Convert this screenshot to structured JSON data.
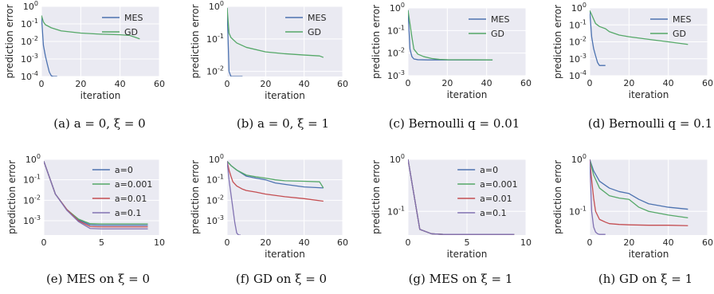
{
  "colors": {
    "plot_bg": "#eaeaf2",
    "grid": "#ffffff",
    "text": "#262626",
    "series": {
      "blue": "#4c72b0",
      "green": "#55a868",
      "red": "#c44e52",
      "purple": "#8172b2"
    }
  },
  "chart_data": [
    {
      "id": "a",
      "type": "line",
      "caption": {
        "label": "(a)",
        "text": "a = 0, ξ = 0"
      },
      "xlabel": "iteration",
      "ylabel": "prediction error",
      "xscale": "linear",
      "yscale": "log",
      "xlim": [
        0,
        60
      ],
      "ylim": [
        0.0001,
        1
      ],
      "xticks": [
        "0",
        "20",
        "40",
        "60"
      ],
      "yticks": [
        {
          "base": "10",
          "exp": "-4"
        },
        {
          "base": "10",
          "exp": "-3"
        },
        {
          "base": "10",
          "exp": "-2"
        },
        {
          "base": "10",
          "exp": "-1"
        },
        {
          "base": "10",
          "exp": "0"
        }
      ],
      "grid": true,
      "legend_position": "top-right",
      "series": [
        {
          "name": "MES",
          "color": "#4c72b0",
          "x": [
            0,
            1,
            2,
            3,
            4,
            5,
            6,
            8
          ],
          "y": [
            0.3,
            0.006,
            0.0015,
            0.0005,
            0.00018,
            0.00011,
            0.0001,
            0.0001
          ]
        },
        {
          "name": "GD",
          "color": "#55a868",
          "x": [
            0,
            1,
            2,
            5,
            10,
            20,
            30,
            40,
            45,
            50
          ],
          "y": [
            0.3,
            0.13,
            0.09,
            0.06,
            0.04,
            0.03,
            0.026,
            0.024,
            0.022,
            0.014
          ]
        }
      ]
    },
    {
      "id": "b",
      "type": "line",
      "caption": {
        "label": "(b)",
        "text": "a = 0, ξ = 1"
      },
      "xlabel": "iteration",
      "ylabel": "prediction error",
      "xscale": "linear",
      "yscale": "log",
      "xlim": [
        0,
        60
      ],
      "ylim": [
        0.007,
        1
      ],
      "xticks": [
        "0",
        "20",
        "40",
        "60"
      ],
      "yticks": [
        {
          "base": "10",
          "exp": "-2"
        },
        {
          "base": "10",
          "exp": "-1"
        },
        {
          "base": "10",
          "exp": "0"
        }
      ],
      "grid": true,
      "legend_position": "top-right",
      "series": [
        {
          "name": "MES",
          "color": "#4c72b0",
          "x": [
            0,
            1,
            2,
            3,
            8
          ],
          "y": [
            0.9,
            0.01,
            0.007,
            0.007,
            0.007
          ]
        },
        {
          "name": "GD",
          "color": "#55a868",
          "x": [
            0,
            1,
            2,
            5,
            10,
            20,
            30,
            40,
            48,
            50
          ],
          "y": [
            0.9,
            0.15,
            0.11,
            0.075,
            0.055,
            0.04,
            0.035,
            0.032,
            0.03,
            0.027
          ]
        }
      ]
    },
    {
      "id": "c",
      "type": "line",
      "caption": {
        "label": "(c)",
        "text": "Bernoulli q = 0.01"
      },
      "xlabel": "iteration",
      "ylabel": "prediction error",
      "xscale": "linear",
      "yscale": "log",
      "xlim": [
        0,
        60
      ],
      "ylim": [
        0.001,
        1
      ],
      "xticks": [
        "0",
        "20",
        "40",
        "60"
      ],
      "yticks": [
        {
          "base": "10",
          "exp": "-3"
        },
        {
          "base": "10",
          "exp": "-2"
        },
        {
          "base": "10",
          "exp": "-1"
        },
        {
          "base": "10",
          "exp": "0"
        }
      ],
      "grid": true,
      "legend_position": "top-right",
      "series": [
        {
          "name": "MES",
          "color": "#4c72b0",
          "x": [
            0,
            1,
            2,
            3,
            5,
            10,
            20,
            30,
            43
          ],
          "y": [
            0.8,
            0.015,
            0.007,
            0.0055,
            0.0051,
            0.005,
            0.005,
            0.005,
            0.005
          ]
        },
        {
          "name": "GD",
          "color": "#55a868",
          "x": [
            0,
            1,
            2,
            3,
            5,
            8,
            12,
            16,
            20,
            43
          ],
          "y": [
            0.8,
            0.2,
            0.05,
            0.015,
            0.009,
            0.007,
            0.0058,
            0.0053,
            0.0051,
            0.005
          ]
        }
      ]
    },
    {
      "id": "d",
      "type": "line",
      "caption": {
        "label": "(d)",
        "text": "Bernoulli q = 0.1"
      },
      "xlabel": "iteration",
      "ylabel": "prediction error",
      "xscale": "linear",
      "yscale": "log",
      "xlim": [
        0,
        60
      ],
      "ylim": [
        0.0001,
        1
      ],
      "xticks": [
        "0",
        "20",
        "40",
        "60"
      ],
      "yticks": [
        {
          "base": "10",
          "exp": "-4"
        },
        {
          "base": "10",
          "exp": "-3"
        },
        {
          "base": "10",
          "exp": "-2"
        },
        {
          "base": "10",
          "exp": "-1"
        },
        {
          "base": "10",
          "exp": "0"
        }
      ],
      "grid": true,
      "legend_position": "top-right",
      "series": [
        {
          "name": "MES",
          "color": "#4c72b0",
          "x": [
            0,
            1,
            2,
            3,
            4,
            5,
            8
          ],
          "y": [
            0.7,
            0.02,
            0.004,
            0.0015,
            0.0006,
            0.0004,
            0.0004
          ]
        },
        {
          "name": "GD",
          "color": "#55a868",
          "x": [
            0,
            1,
            2,
            3,
            5,
            8,
            10,
            15,
            20,
            30,
            40,
            50
          ],
          "y": [
            0.7,
            0.4,
            0.22,
            0.12,
            0.08,
            0.06,
            0.04,
            0.025,
            0.02,
            0.014,
            0.01,
            0.007
          ]
        }
      ]
    },
    {
      "id": "e",
      "type": "line",
      "caption": {
        "label": "(e)",
        "text": "MES on ξ = 0"
      },
      "xlabel": "",
      "ylabel": "prediction error",
      "xscale": "linear",
      "yscale": "log",
      "xlim": [
        0,
        10
      ],
      "ylim": [
        0.0002,
        1
      ],
      "xticks": [
        "0",
        "5",
        "10"
      ],
      "yticks": [
        {
          "base": "10",
          "exp": "-3"
        },
        {
          "base": "10",
          "exp": "-2"
        },
        {
          "base": "10",
          "exp": "-1"
        },
        {
          "base": "10",
          "exp": "0"
        }
      ],
      "grid": true,
      "legend_position": "upper-middle",
      "series": [
        {
          "name": "a=0",
          "color": "#4c72b0",
          "x": [
            0,
            1,
            2,
            3,
            4,
            5,
            6,
            7,
            8,
            9
          ],
          "y": [
            0.8,
            0.02,
            0.0035,
            0.0011,
            0.00062,
            0.0006,
            0.0006,
            0.0006,
            0.0006,
            0.0006
          ]
        },
        {
          "name": "a=0.001",
          "color": "#55a868",
          "x": [
            0,
            1,
            2,
            3,
            4,
            5,
            6,
            7,
            8,
            9
          ],
          "y": [
            0.8,
            0.02,
            0.0035,
            0.0012,
            0.00072,
            0.0007,
            0.0007,
            0.0007,
            0.0007,
            0.0007
          ]
        },
        {
          "name": "a=0.01",
          "color": "#c44e52",
          "x": [
            0,
            1,
            2,
            3,
            4,
            5,
            6,
            7,
            8,
            9
          ],
          "y": [
            0.8,
            0.02,
            0.0035,
            0.001,
            0.00052,
            0.0005,
            0.0005,
            0.0005,
            0.0005,
            0.0005
          ]
        },
        {
          "name": "a=0.1",
          "color": "#8172b2",
          "x": [
            0,
            1,
            2,
            3,
            4,
            5,
            6,
            7,
            8,
            9
          ],
          "y": [
            0.8,
            0.02,
            0.0032,
            0.0009,
            0.00042,
            0.0004,
            0.0004,
            0.0004,
            0.0004,
            0.0004
          ]
        }
      ]
    },
    {
      "id": "f",
      "type": "line",
      "caption": {
        "label": "(f)",
        "text": "GD on ξ = 0"
      },
      "xlabel": "iteration",
      "ylabel": "prediction error",
      "xscale": "linear",
      "yscale": "log",
      "xlim": [
        0,
        60
      ],
      "ylim": [
        0.0002,
        1
      ],
      "xticks": [
        "0",
        "20",
        "40",
        "60"
      ],
      "yticks": [
        {
          "base": "10",
          "exp": "-3"
        },
        {
          "base": "10",
          "exp": "-2"
        },
        {
          "base": "10",
          "exp": "-1"
        },
        {
          "base": "10",
          "exp": "0"
        }
      ],
      "grid": true,
      "legend_position": "none",
      "series": [
        {
          "name": "a=0",
          "color": "#4c72b0",
          "x": [
            0,
            2,
            5,
            10,
            15,
            20,
            25,
            30,
            40,
            50
          ],
          "y": [
            0.8,
            0.5,
            0.3,
            0.15,
            0.12,
            0.1,
            0.07,
            0.06,
            0.045,
            0.04
          ]
        },
        {
          "name": "a=0.001",
          "color": "#55a868",
          "x": [
            0,
            2,
            5,
            10,
            15,
            20,
            25,
            30,
            40,
            48,
            50
          ],
          "y": [
            0.8,
            0.5,
            0.3,
            0.17,
            0.14,
            0.12,
            0.1,
            0.09,
            0.085,
            0.08,
            0.04
          ]
        },
        {
          "name": "a=0.01",
          "color": "#c44e52",
          "x": [
            0,
            1,
            2,
            3,
            5,
            8,
            10,
            15,
            20,
            30,
            40,
            50
          ],
          "y": [
            0.8,
            0.3,
            0.15,
            0.08,
            0.05,
            0.035,
            0.03,
            0.025,
            0.02,
            0.015,
            0.012,
            0.009
          ]
        },
        {
          "name": "a=0.1",
          "color": "#8172b2",
          "x": [
            0,
            1,
            2,
            3,
            4,
            5,
            6,
            7
          ],
          "y": [
            0.8,
            0.1,
            0.02,
            0.004,
            0.0008,
            0.00025,
            0.0002,
            0.0002
          ]
        }
      ]
    },
    {
      "id": "g",
      "type": "line",
      "caption": {
        "label": "(g)",
        "text": "MES on ξ = 1"
      },
      "xlabel": "iteration",
      "ylabel": "prediction error",
      "xscale": "linear",
      "yscale": "log",
      "xlim": [
        0,
        10
      ],
      "ylim": [
        0.035,
        1
      ],
      "xticks": [
        "0",
        "5",
        "10"
      ],
      "yticks": [
        {
          "base": "10",
          "exp": "-1"
        },
        {
          "base": "10",
          "exp": "0"
        }
      ],
      "grid": true,
      "legend_position": "upper-middle",
      "series": [
        {
          "name": "a=0",
          "color": "#4c72b0",
          "x": [
            0,
            1,
            2,
            3,
            5,
            9
          ],
          "y": [
            1,
            0.045,
            0.037,
            0.036,
            0.036,
            0.036
          ]
        },
        {
          "name": "a=0.001",
          "color": "#55a868",
          "x": [
            0,
            1,
            2,
            3,
            5,
            9
          ],
          "y": [
            1,
            0.045,
            0.037,
            0.036,
            0.036,
            0.036
          ]
        },
        {
          "name": "a=0.01",
          "color": "#c44e52",
          "x": [
            0,
            1,
            2,
            3,
            5,
            9
          ],
          "y": [
            1,
            0.045,
            0.037,
            0.036,
            0.036,
            0.036
          ]
        },
        {
          "name": "a=0.1",
          "color": "#8172b2",
          "x": [
            0,
            1,
            2,
            3,
            5,
            9
          ],
          "y": [
            1,
            0.045,
            0.037,
            0.036,
            0.036,
            0.036
          ]
        }
      ]
    },
    {
      "id": "h",
      "type": "line",
      "caption": {
        "label": "(h)",
        "text": "GD on ξ = 1"
      },
      "xlabel": "iteration",
      "ylabel": "prediction error",
      "xscale": "linear",
      "yscale": "log",
      "xlim": [
        0,
        60
      ],
      "ylim": [
        0.035,
        1
      ],
      "xticks": [
        "0",
        "20",
        "40",
        "60"
      ],
      "yticks": [
        {
          "base": "10",
          "exp": "-1"
        },
        {
          "base": "10",
          "exp": "0"
        }
      ],
      "grid": true,
      "legend_position": "none",
      "series": [
        {
          "name": "a=0",
          "color": "#4c72b0",
          "x": [
            0,
            2,
            5,
            10,
            15,
            20,
            25,
            30,
            40,
            50
          ],
          "y": [
            1,
            0.6,
            0.38,
            0.28,
            0.24,
            0.22,
            0.17,
            0.14,
            0.12,
            0.11
          ]
        },
        {
          "name": "a=0.001",
          "color": "#55a868",
          "x": [
            0,
            2,
            5,
            10,
            15,
            20,
            25,
            30,
            40,
            50
          ],
          "y": [
            1,
            0.5,
            0.28,
            0.2,
            0.18,
            0.17,
            0.12,
            0.1,
            0.085,
            0.075
          ]
        },
        {
          "name": "a=0.01",
          "color": "#c44e52",
          "x": [
            0,
            1,
            2,
            3,
            5,
            8,
            10,
            15,
            20,
            30,
            40,
            50
          ],
          "y": [
            1,
            0.4,
            0.18,
            0.1,
            0.07,
            0.062,
            0.058,
            0.056,
            0.055,
            0.054,
            0.054,
            0.053
          ]
        },
        {
          "name": "a=0.1",
          "color": "#8172b2",
          "x": [
            0,
            1,
            2,
            3,
            4,
            5,
            8
          ],
          "y": [
            1,
            0.1,
            0.05,
            0.04,
            0.037,
            0.036,
            0.036
          ]
        }
      ]
    }
  ]
}
